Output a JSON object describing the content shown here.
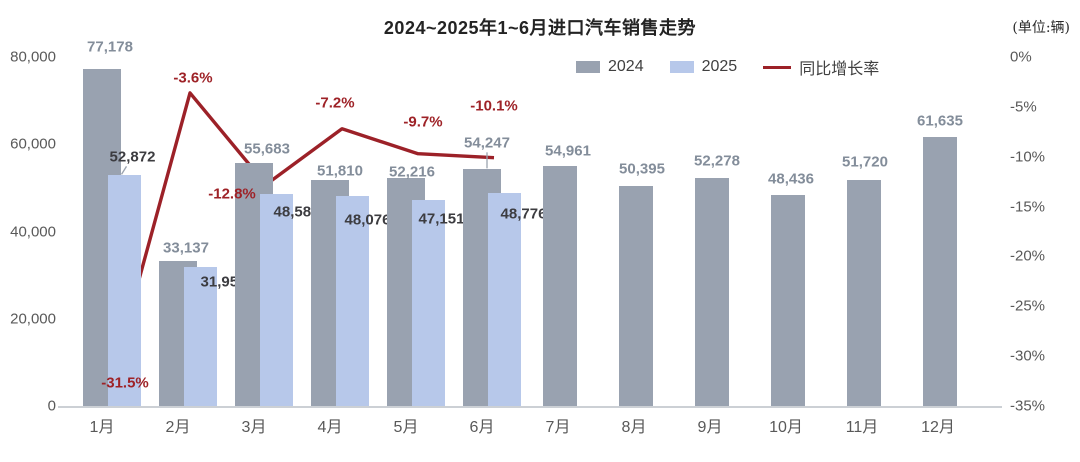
{
  "title": "2024~2025年1~6月进口汽车销售走势",
  "unit_label": "(单位:辆)",
  "legend": [
    {
      "label": "2024",
      "swatch": "bar",
      "color": "#99a2b0"
    },
    {
      "label": "2025",
      "swatch": "bar",
      "color": "#b7c8ea"
    },
    {
      "label": "同比增长率",
      "swatch": "line",
      "color": "#9c2128"
    }
  ],
  "colors": {
    "bar_2024": "#99a2b0",
    "bar_2025": "#b7c8ea",
    "growth_line": "#9c2128",
    "growth_label_text": "#9e2227",
    "label_2024_text": "#838d9a",
    "label_2025_text": "#3c3c40",
    "axis_text": "#595959"
  },
  "chart_data": {
    "type": "bar",
    "subtype": "grouped-bars-with-line",
    "title": "2024~2025年1~6月进口汽车销售走势",
    "unit": "辆",
    "categories": [
      "1月",
      "2月",
      "3月",
      "4月",
      "5月",
      "6月",
      "7月",
      "8月",
      "9月",
      "10月",
      "11月",
      "12月"
    ],
    "series": [
      {
        "name": "2024",
        "type": "bar",
        "axis": "left",
        "color": "#99a2b0",
        "values": [
          77178,
          33137,
          55683,
          51810,
          52216,
          54247,
          54961,
          50395,
          52278,
          48436,
          51720,
          61635
        ],
        "labels": [
          "77,178",
          "33,137",
          "55,683",
          "51,810",
          "52,216",
          "54,247",
          "54,961",
          "50,395",
          "52,278",
          "48,436",
          "51,720",
          "61,635"
        ]
      },
      {
        "name": "2025",
        "type": "bar",
        "axis": "left",
        "color": "#b7c8ea",
        "values": [
          52872,
          31957,
          48580,
          48076,
          47151,
          48776,
          null,
          null,
          null,
          null,
          null,
          null
        ],
        "labels": [
          "52,872",
          "31,957",
          "48,580",
          "48,076",
          "47,151",
          "48,776",
          null,
          null,
          null,
          null,
          null,
          null
        ]
      },
      {
        "name": "同比增长率",
        "type": "line",
        "axis": "right",
        "color": "#9c2128",
        "values": [
          -31.5,
          -3.6,
          -12.8,
          -7.2,
          -9.7,
          -10.1,
          null,
          null,
          null,
          null,
          null,
          null
        ],
        "labels": [
          "-31.5%",
          "-3.6%",
          "-12.8%",
          "-7.2%",
          "-9.7%",
          "-10.1%",
          null,
          null,
          null,
          null,
          null,
          null
        ]
      }
    ],
    "left_axis": {
      "min": 0,
      "max": 80000,
      "tick_labels": [
        "80,000",
        "60,000",
        "40,000",
        "20,000",
        "0"
      ]
    },
    "right_axis": {
      "min": -35,
      "max": 0,
      "tick_labels": [
        "0%",
        "-5%",
        "-10%",
        "-15%",
        "-20%",
        "-25%",
        "-30%",
        "-35%"
      ]
    },
    "grid": false,
    "legend_position": "top-center"
  }
}
